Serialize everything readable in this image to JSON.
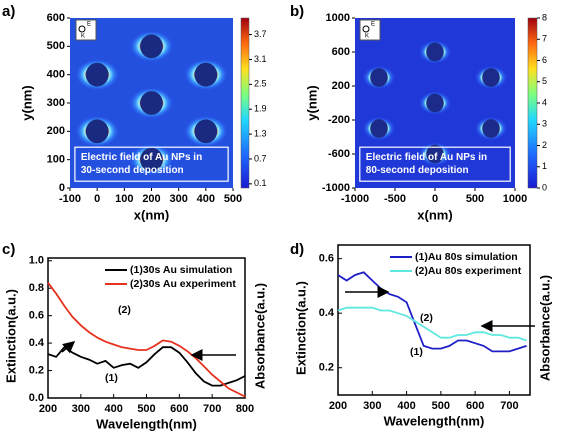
{
  "chart_data": [
    {
      "type": "field-map",
      "panel_label": "a)",
      "xlabel": "x(nm)",
      "ylabel": "y(nm)",
      "xlim": [
        -100,
        500
      ],
      "ylim": [
        0,
        600
      ],
      "xticks": [
        -100,
        0,
        100,
        200,
        300,
        400,
        500
      ],
      "yticks": [
        0,
        100,
        200,
        300,
        400,
        500,
        600
      ],
      "colorbar": {
        "lim": [
          0,
          4.1
        ],
        "ticks": [
          0.1,
          0.7,
          1.3,
          1.9,
          2.5,
          3.1,
          3.7
        ]
      },
      "particles": {
        "x": [
          0,
          0,
          200,
          200,
          200,
          400,
          400
        ],
        "y": [
          200,
          400,
          100,
          300,
          500,
          200,
          400
        ]
      },
      "particle_radius": 42,
      "inset_labels": [
        "E",
        "K"
      ],
      "annotation": [
        "Electric field of Au NPs in",
        "30-second deposition"
      ]
    },
    {
      "type": "field-map",
      "panel_label": "b)",
      "xlabel": "x(nm)",
      "ylabel": "y(nm)",
      "xlim": [
        -1000,
        1000
      ],
      "ylim": [
        -1000,
        1000
      ],
      "xticks": [
        -1000,
        -500,
        0,
        500,
        1000
      ],
      "yticks": [
        -1000,
        -600,
        -200,
        200,
        600,
        1000
      ],
      "colorbar": {
        "lim": [
          0,
          8
        ],
        "ticks": [
          0,
          1,
          2,
          3,
          4,
          5,
          6,
          7,
          8
        ]
      },
      "particles": {
        "x": [
          -700,
          -700,
          0,
          0,
          0,
          700,
          700
        ],
        "y": [
          -300,
          300,
          -600,
          0,
          600,
          -300,
          300
        ]
      },
      "particle_radius": 110,
      "inset_labels": [
        "E",
        "K"
      ],
      "annotation": [
        "Electric field of Au NPs in",
        "80-second deposition"
      ]
    },
    {
      "type": "line",
      "panel_label": "c)",
      "xlabel": "Wavelength(nm)",
      "ylabel": "Extinction(a.u.)",
      "y2label": "Absorbance(a.u.)",
      "xlim": [
        200,
        800
      ],
      "ylim": [
        0,
        1.02
      ],
      "xticks": [
        200,
        300,
        400,
        500,
        600,
        700,
        800
      ],
      "yticks": [
        {
          "value": 0,
          "label": "0.0"
        },
        0.2,
        0.4,
        0.6,
        0.8,
        {
          "value": 1,
          "label": "1.0"
        }
      ],
      "x": [
        200,
        225,
        250,
        275,
        300,
        325,
        350,
        375,
        400,
        425,
        450,
        475,
        500,
        525,
        550,
        575,
        600,
        625,
        650,
        675,
        700,
        725,
        750,
        775,
        800
      ],
      "series": [
        {
          "name": "(1)30s Au simulation",
          "color": "#000000",
          "values": [
            0.32,
            0.3,
            0.37,
            0.33,
            0.3,
            0.28,
            0.25,
            0.27,
            0.22,
            0.24,
            0.25,
            0.22,
            0.26,
            0.32,
            0.37,
            0.37,
            0.33,
            0.26,
            0.18,
            0.12,
            0.09,
            0.09,
            0.11,
            0.13,
            0.16
          ]
        },
        {
          "name": "(2)30s Au experiment",
          "color": "#e8321e",
          "values": [
            0.84,
            0.76,
            0.67,
            0.59,
            0.53,
            0.48,
            0.44,
            0.41,
            0.39,
            0.37,
            0.36,
            0.35,
            0.35,
            0.38,
            0.42,
            0.41,
            0.38,
            0.34,
            0.29,
            0.23,
            0.17,
            0.12,
            0.07,
            0.04,
            0.01
          ]
        }
      ],
      "annotations": [
        "(1)",
        "(2)"
      ]
    },
    {
      "type": "line",
      "panel_label": "d)",
      "xlabel": "Wavelength(nm)",
      "ylabel": "Extinction(a.u.)",
      "y2label": "Absorbance(a.u.)",
      "xlim": [
        200,
        760
      ],
      "ylim": [
        0.1,
        0.65
      ],
      "xticks": [
        200,
        300,
        400,
        500,
        600,
        700
      ],
      "yticks": [
        0.2,
        0.4,
        0.6
      ],
      "x": [
        200,
        225,
        250,
        275,
        300,
        325,
        350,
        375,
        400,
        425,
        450,
        475,
        500,
        525,
        550,
        575,
        600,
        625,
        650,
        675,
        700,
        725,
        750
      ],
      "series": [
        {
          "name": "(1)Au 80s simulation",
          "color": "#1f1fc8",
          "values": [
            0.54,
            0.52,
            0.54,
            0.55,
            0.52,
            0.49,
            0.47,
            0.46,
            0.44,
            0.36,
            0.28,
            0.27,
            0.27,
            0.28,
            0.3,
            0.3,
            0.29,
            0.28,
            0.26,
            0.26,
            0.26,
            0.27,
            0.28
          ]
        },
        {
          "name": "(2)Au 80s experiment",
          "color": "#5fe8e0",
          "values": [
            0.41,
            0.42,
            0.42,
            0.42,
            0.42,
            0.41,
            0.41,
            0.4,
            0.39,
            0.37,
            0.35,
            0.33,
            0.31,
            0.31,
            0.32,
            0.32,
            0.33,
            0.33,
            0.32,
            0.32,
            0.31,
            0.31,
            0.3
          ]
        }
      ],
      "annotations": [
        "(1)",
        "(2)"
      ]
    }
  ]
}
